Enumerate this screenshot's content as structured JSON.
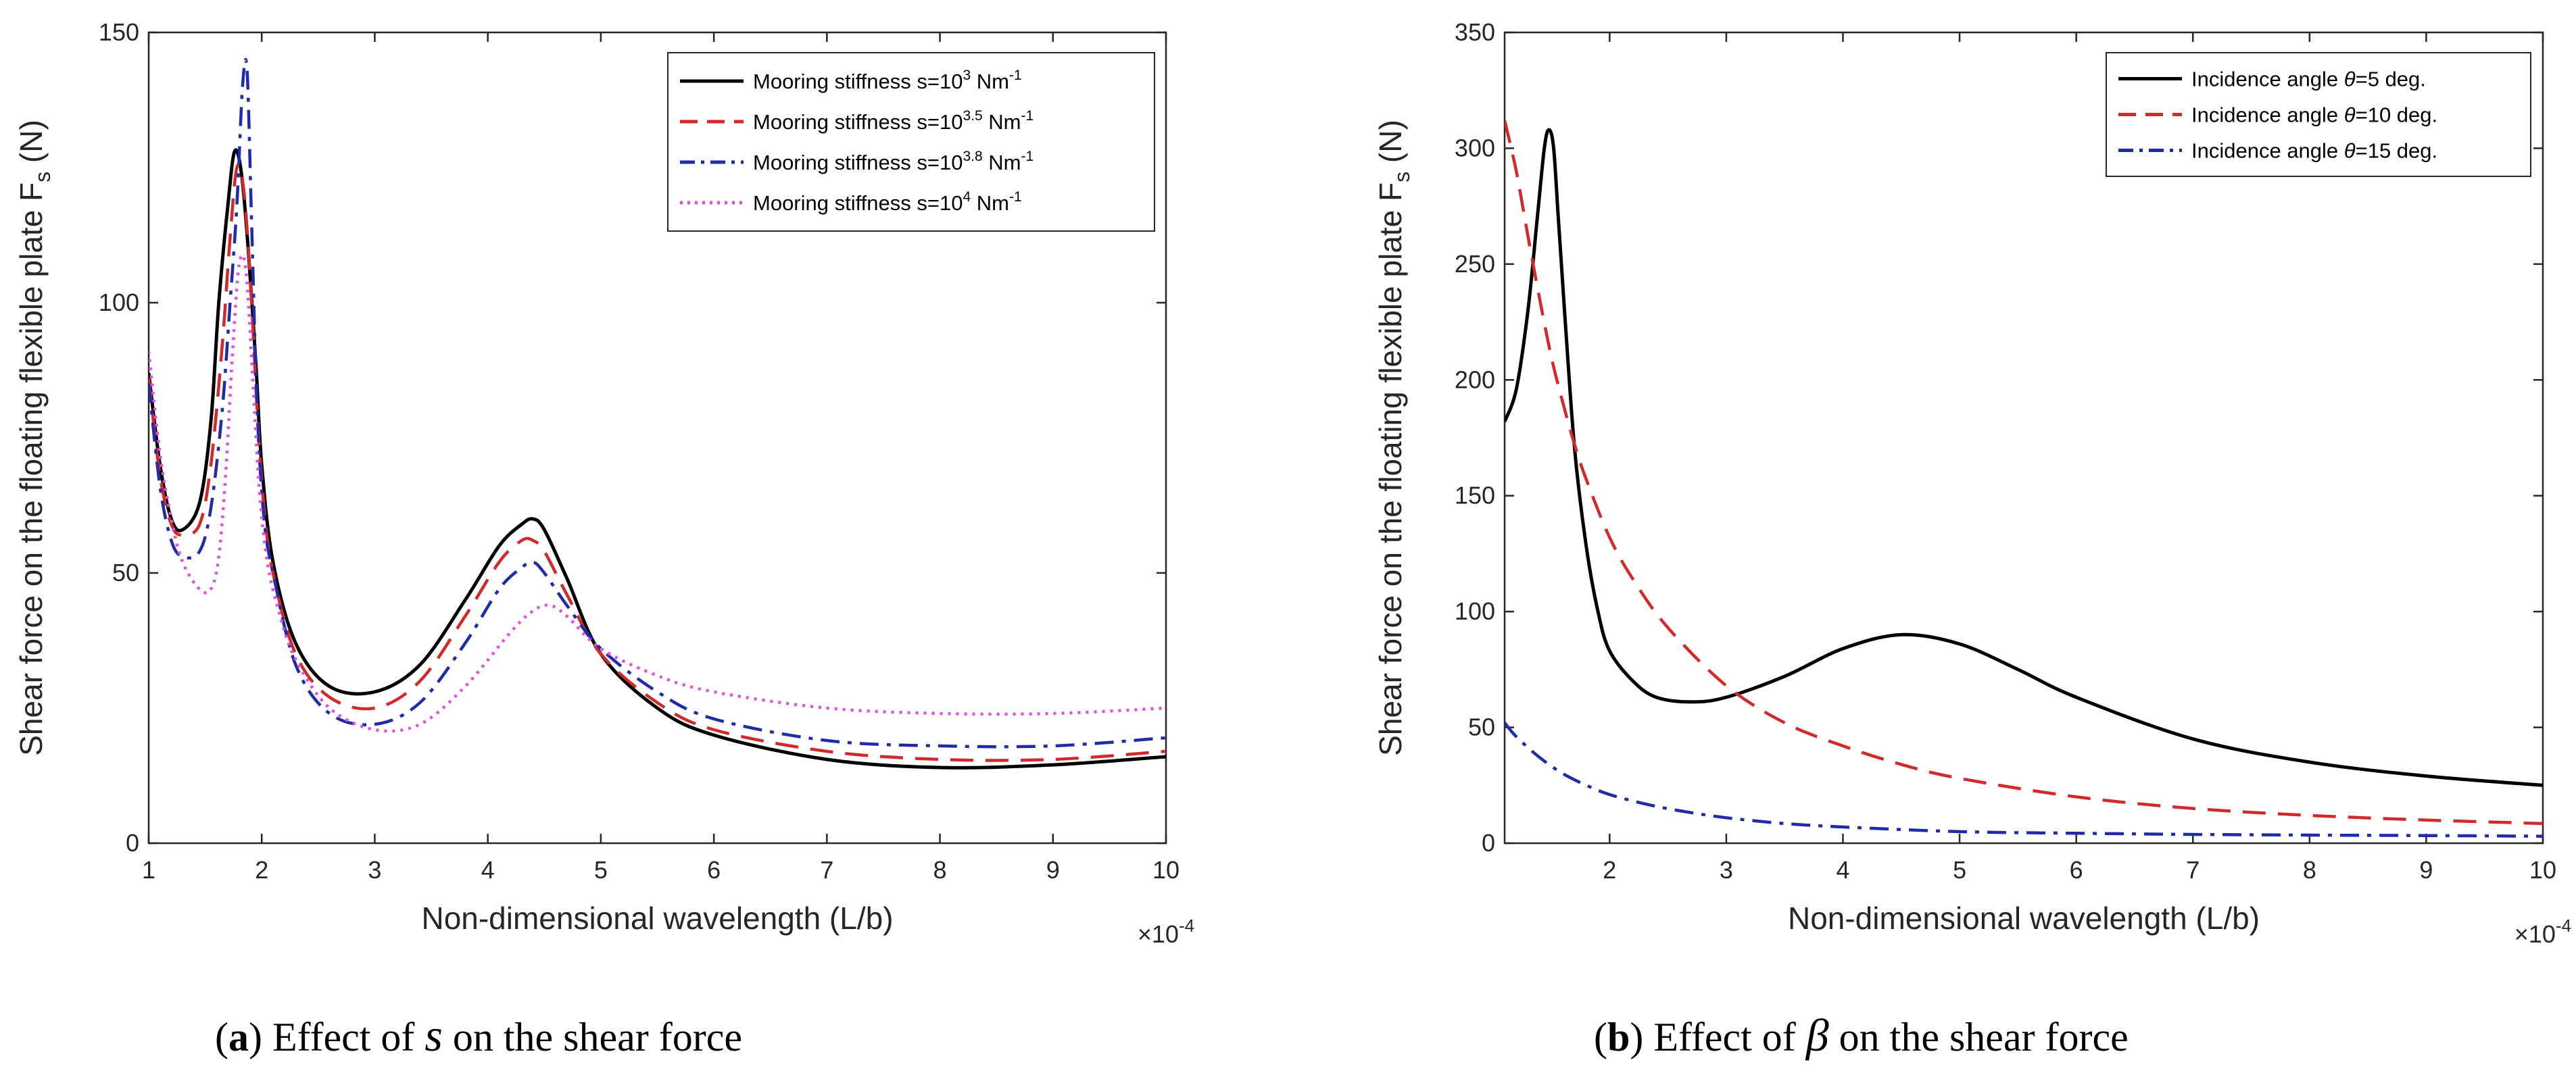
{
  "chart_data": [
    {
      "type": "line",
      "panel": "a",
      "caption_letter": "a",
      "caption_open": "(",
      "caption_close": ")",
      "caption_text": "Effect of",
      "caption_symbol": "s",
      "caption_rest": "on the shear force",
      "xlabel": "Non-dimensional wavelength (L/b)",
      "ylabel": "Shear force on the floating flexible plate F",
      "ylabel_sub": "s",
      "ylabel_unit": " (N)",
      "x_multiplier_base": "×10",
      "x_multiplier_exp": "-4",
      "xlim": [
        1,
        10
      ],
      "ylim": [
        0,
        150
      ],
      "xticks": [
        1,
        2,
        3,
        4,
        5,
        6,
        7,
        8,
        9,
        10
      ],
      "yticks": [
        0,
        50,
        100,
        150
      ],
      "legend_position": "top-right",
      "series": [
        {
          "name": "Mooring stiffness s=10",
          "name_exp": "3",
          "name_unit": " Nm",
          "name_unit_exp": "-1",
          "color": "#000000",
          "dash": "solid",
          "x": [
            1.0,
            1.1,
            1.2,
            1.3,
            1.45,
            1.55,
            1.62,
            1.7,
            1.76,
            1.82,
            1.88,
            1.95,
            2.0,
            2.1,
            2.3,
            2.6,
            3.0,
            3.4,
            3.8,
            4.1,
            4.3,
            4.4,
            4.5,
            4.7,
            5.0,
            5.5,
            6.0,
            7.0,
            8.0,
            9.0,
            10.0
          ],
          "values": [
            87,
            70,
            60,
            58,
            63,
            78,
            100,
            118,
            128,
            124,
            110,
            88,
            70,
            52,
            37,
            29,
            28,
            33,
            45,
            55,
            59,
            60,
            58,
            49,
            35,
            25,
            20,
            15.5,
            14,
            14.5,
            16
          ]
        },
        {
          "name": "Mooring stiffness s=10",
          "name_exp": "3.5",
          "name_unit": " Nm",
          "name_unit_exp": "-1",
          "color": "#d22a2a",
          "dash": "dashed",
          "x": [
            1.0,
            1.1,
            1.2,
            1.3,
            1.45,
            1.55,
            1.65,
            1.72,
            1.78,
            1.84,
            1.9,
            1.96,
            2.02,
            2.1,
            2.3,
            2.6,
            3.0,
            3.4,
            3.8,
            4.1,
            4.3,
            4.4,
            4.5,
            4.7,
            5.0,
            5.5,
            6.0,
            7.0,
            8.0,
            9.0,
            10.0
          ],
          "values": [
            86,
            68,
            59,
            57,
            59,
            70,
            92,
            112,
            125,
            121,
            104,
            80,
            62,
            50,
            35,
            27,
            25,
            30,
            42,
            52,
            56,
            56,
            54,
            46,
            35,
            26,
            21,
            17,
            15.5,
            15.5,
            17
          ]
        },
        {
          "name": "Mooring stiffness s=10",
          "name_exp": "3.8",
          "name_unit": " Nm",
          "name_unit_exp": "-1",
          "color": "#1f2ba8",
          "dash": "dashdot",
          "x": [
            1.0,
            1.1,
            1.2,
            1.3,
            1.45,
            1.55,
            1.65,
            1.72,
            1.78,
            1.83,
            1.87,
            1.91,
            1.96,
            2.02,
            2.1,
            2.3,
            2.6,
            3.0,
            3.4,
            3.8,
            4.1,
            4.3,
            4.4,
            4.5,
            4.7,
            5.0,
            5.5,
            6.0,
            7.0,
            8.0,
            9.0,
            10.0
          ],
          "values": [
            85,
            66,
            56,
            53,
            54,
            62,
            80,
            100,
            118,
            140,
            143,
            115,
            80,
            60,
            50,
            33,
            24,
            22,
            26,
            37,
            47,
            51,
            52,
            50,
            44,
            36,
            28,
            23,
            19,
            18,
            18,
            19.5
          ]
        },
        {
          "name": "Mooring stiffness s=10",
          "name_exp": "4",
          "name_unit": " Nm",
          "name_unit_exp": "-1",
          "color": "#e04fe0",
          "dash": "dotted",
          "x": [
            1.0,
            1.1,
            1.2,
            1.3,
            1.45,
            1.55,
            1.62,
            1.68,
            1.74,
            1.8,
            1.86,
            1.92,
            1.98,
            2.05,
            2.15,
            2.3,
            2.6,
            3.0,
            3.4,
            3.8,
            4.2,
            4.4,
            4.55,
            4.7,
            5.0,
            5.5,
            6.0,
            7.0,
            8.0,
            9.0,
            10.0
          ],
          "values": [
            91,
            72,
            60,
            52,
            47,
            47,
            53,
            68,
            90,
            107,
            106,
            86,
            65,
            52,
            43,
            34,
            25,
            21,
            22,
            29,
            39,
            43,
            44,
            42,
            36,
            31,
            28,
            25,
            24,
            24,
            25
          ]
        }
      ]
    },
    {
      "type": "line",
      "panel": "b",
      "caption_letter": "b",
      "caption_open": "(",
      "caption_close": ")",
      "caption_text": "Effect of",
      "caption_symbol": "β",
      "caption_rest": "on the shear force",
      "xlabel": "Non-dimensional wavelength (L/b)",
      "ylabel": "Shear force on the floating flexible plate F",
      "ylabel_sub": "s",
      "ylabel_unit": " (N)",
      "x_multiplier_base": "×10",
      "x_multiplier_exp": "-4",
      "xlim": [
        1.1,
        10
      ],
      "ylim": [
        0,
        350
      ],
      "xticks": [
        2,
        3,
        4,
        5,
        6,
        7,
        8,
        9,
        10
      ],
      "yticks": [
        0,
        50,
        100,
        150,
        200,
        250,
        300,
        350
      ],
      "legend_position": "top-right",
      "series": [
        {
          "name": "Incidence angle ",
          "name_theta": "θ",
          "name_tail": "=5 deg.",
          "color": "#000000",
          "dash": "solid",
          "x": [
            1.1,
            1.2,
            1.3,
            1.38,
            1.44,
            1.48,
            1.52,
            1.56,
            1.62,
            1.7,
            1.8,
            1.9,
            2.0,
            2.2,
            2.4,
            2.7,
            3.0,
            3.5,
            4.0,
            4.5,
            5.0,
            5.5,
            6.0,
            7.0,
            8.0,
            9.0,
            10.0
          ],
          "values": [
            182,
            196,
            230,
            270,
            300,
            308,
            300,
            270,
            225,
            170,
            128,
            100,
            83,
            70,
            63,
            61,
            63,
            72,
            84,
            90,
            86,
            75,
            63,
            45,
            35,
            29,
            25
          ]
        },
        {
          "name": "Incidence angle ",
          "name_theta": "θ",
          "name_tail": "=10 deg.",
          "color": "#d22a2a",
          "dash": "dashed",
          "x": [
            1.1,
            1.2,
            1.3,
            1.4,
            1.5,
            1.6,
            1.7,
            1.8,
            2.0,
            2.2,
            2.5,
            3.0,
            3.5,
            4.0,
            4.5,
            5.0,
            6.0,
            7.0,
            8.0,
            9.0,
            10.0
          ],
          "values": [
            312,
            290,
            262,
            235,
            210,
            190,
            172,
            157,
            132,
            114,
            93,
            68,
            52,
            42,
            34,
            28,
            20,
            15,
            12,
            10,
            8.5
          ]
        },
        {
          "name": "Incidence angle ",
          "name_theta": "θ",
          "name_tail": "=15 deg.",
          "color": "#1f2ba8",
          "dash": "dashdot",
          "x": [
            1.1,
            1.2,
            1.4,
            1.6,
            1.8,
            2.0,
            2.3,
            2.6,
            3.0,
            3.5,
            4.0,
            5.0,
            6.0,
            7.0,
            8.0,
            9.0,
            10.0
          ],
          "values": [
            52,
            46,
            37,
            30,
            25,
            21,
            17,
            14,
            11,
            8.5,
            7,
            5,
            4.3,
            3.8,
            3.5,
            3.3,
            3
          ]
        }
      ]
    }
  ]
}
